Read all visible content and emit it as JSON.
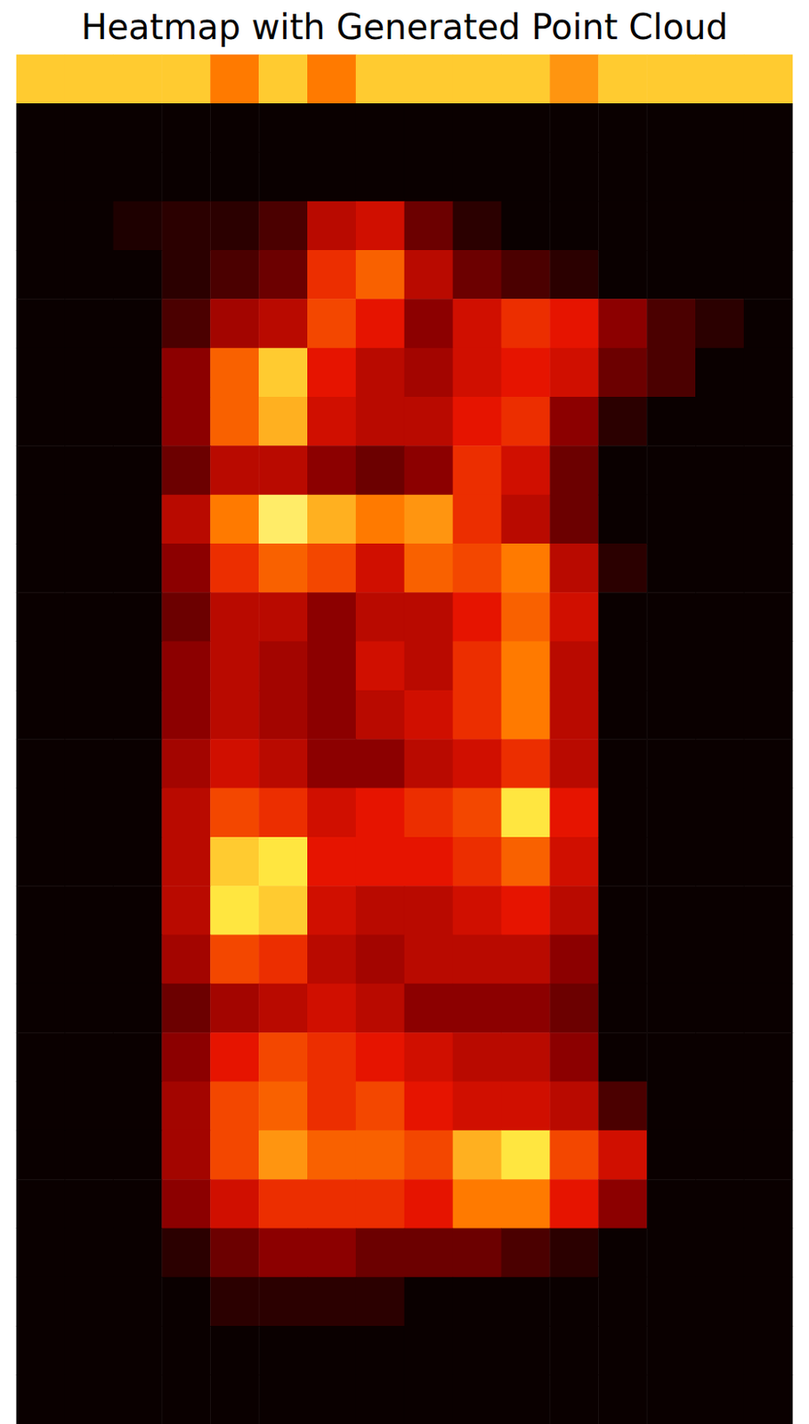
{
  "chart_data": {
    "type": "heatmap",
    "title": "Heatmap with Generated Point Cloud",
    "tick_labels": false,
    "zlim": [
      0,
      1
    ],
    "cells": [
      [
        0.75,
        0.75,
        0.75,
        0.75,
        0.6,
        0.75,
        0.6,
        0.75,
        0.75,
        0.75,
        0.75,
        0.65,
        0.75,
        0.75,
        0.75,
        0.75
      ],
      [
        0,
        0,
        0,
        0,
        0,
        0,
        0,
        0,
        0,
        0,
        0,
        0,
        0,
        0,
        0,
        0
      ],
      [
        0,
        0,
        0,
        0,
        0,
        0,
        0,
        0,
        0,
        0,
        0,
        0,
        0,
        0,
        0,
        0
      ],
      [
        0,
        0,
        0.03,
        0.05,
        0.05,
        0.1,
        0.3,
        0.35,
        0.15,
        0.05,
        0,
        0,
        0,
        0,
        0,
        0
      ],
      [
        0,
        0,
        0,
        0.05,
        0.1,
        0.15,
        0.45,
        0.55,
        0.3,
        0.15,
        0.1,
        0.05,
        0,
        0,
        0,
        0
      ],
      [
        0,
        0,
        0,
        0.1,
        0.25,
        0.3,
        0.5,
        0.4,
        0.2,
        0.35,
        0.45,
        0.4,
        0.2,
        0.1,
        0.05,
        0
      ],
      [
        0,
        0,
        0,
        0.2,
        0.55,
        0.75,
        0.4,
        0.3,
        0.25,
        0.35,
        0.4,
        0.35,
        0.15,
        0.1,
        0,
        0
      ],
      [
        0,
        0,
        0,
        0.2,
        0.55,
        0.7,
        0.35,
        0.3,
        0.3,
        0.4,
        0.45,
        0.2,
        0.05,
        0,
        0,
        0
      ],
      [
        0,
        0,
        0,
        0.15,
        0.3,
        0.3,
        0.2,
        0.15,
        0.2,
        0.45,
        0.35,
        0.15,
        0,
        0,
        0,
        0
      ],
      [
        0,
        0,
        0,
        0.3,
        0.6,
        0.85,
        0.7,
        0.6,
        0.65,
        0.45,
        0.3,
        0.15,
        0,
        0,
        0,
        0
      ],
      [
        0,
        0,
        0,
        0.2,
        0.45,
        0.55,
        0.5,
        0.35,
        0.55,
        0.5,
        0.6,
        0.3,
        0.05,
        0,
        0,
        0
      ],
      [
        0,
        0,
        0,
        0.15,
        0.3,
        0.3,
        0.2,
        0.3,
        0.3,
        0.4,
        0.55,
        0.35,
        0,
        0,
        0,
        0
      ],
      [
        0,
        0,
        0,
        0.2,
        0.3,
        0.25,
        0.2,
        0.35,
        0.3,
        0.45,
        0.6,
        0.3,
        0,
        0,
        0,
        0
      ],
      [
        0,
        0,
        0,
        0.2,
        0.3,
        0.25,
        0.2,
        0.3,
        0.35,
        0.45,
        0.6,
        0.3,
        0,
        0,
        0,
        0
      ],
      [
        0,
        0,
        0,
        0.25,
        0.35,
        0.3,
        0.2,
        0.2,
        0.3,
        0.35,
        0.45,
        0.3,
        0,
        0,
        0,
        0
      ],
      [
        0,
        0,
        0,
        0.3,
        0.5,
        0.45,
        0.35,
        0.4,
        0.45,
        0.5,
        0.8,
        0.4,
        0,
        0,
        0,
        0
      ],
      [
        0,
        0,
        0,
        0.3,
        0.75,
        0.8,
        0.4,
        0.4,
        0.4,
        0.45,
        0.55,
        0.35,
        0,
        0,
        0,
        0
      ],
      [
        0,
        0,
        0,
        0.3,
        0.8,
        0.75,
        0.35,
        0.3,
        0.3,
        0.35,
        0.4,
        0.3,
        0,
        0,
        0,
        0
      ],
      [
        0,
        0,
        0,
        0.25,
        0.5,
        0.45,
        0.3,
        0.25,
        0.3,
        0.3,
        0.3,
        0.2,
        0,
        0,
        0,
        0
      ],
      [
        0,
        0,
        0,
        0.15,
        0.25,
        0.3,
        0.35,
        0.3,
        0.2,
        0.2,
        0.2,
        0.15,
        0,
        0,
        0,
        0
      ],
      [
        0,
        0,
        0,
        0.2,
        0.4,
        0.5,
        0.45,
        0.4,
        0.35,
        0.3,
        0.3,
        0.2,
        0,
        0,
        0,
        0
      ],
      [
        0,
        0,
        0,
        0.25,
        0.5,
        0.55,
        0.45,
        0.5,
        0.4,
        0.35,
        0.35,
        0.3,
        0.1,
        0,
        0,
        0
      ],
      [
        0,
        0,
        0,
        0.25,
        0.5,
        0.65,
        0.55,
        0.55,
        0.5,
        0.7,
        0.8,
        0.5,
        0.35,
        0,
        0,
        0
      ],
      [
        0,
        0,
        0,
        0.2,
        0.35,
        0.45,
        0.45,
        0.45,
        0.4,
        0.6,
        0.6,
        0.4,
        0.2,
        0,
        0,
        0
      ],
      [
        0,
        0,
        0,
        0.05,
        0.15,
        0.2,
        0.2,
        0.15,
        0.15,
        0.15,
        0.1,
        0.05,
        0,
        0,
        0,
        0
      ],
      [
        0,
        0,
        0,
        0,
        0.05,
        0.05,
        0.05,
        0.05,
        0,
        0,
        0,
        0,
        0,
        0,
        0,
        0
      ],
      [
        0,
        0,
        0,
        0,
        0,
        0,
        0,
        0,
        0,
        0,
        0,
        0,
        0,
        0,
        0,
        0
      ],
      [
        0,
        0,
        0,
        0,
        0,
        0,
        0,
        0,
        0,
        0,
        0,
        0,
        0,
        0,
        0,
        0
      ]
    ]
  }
}
